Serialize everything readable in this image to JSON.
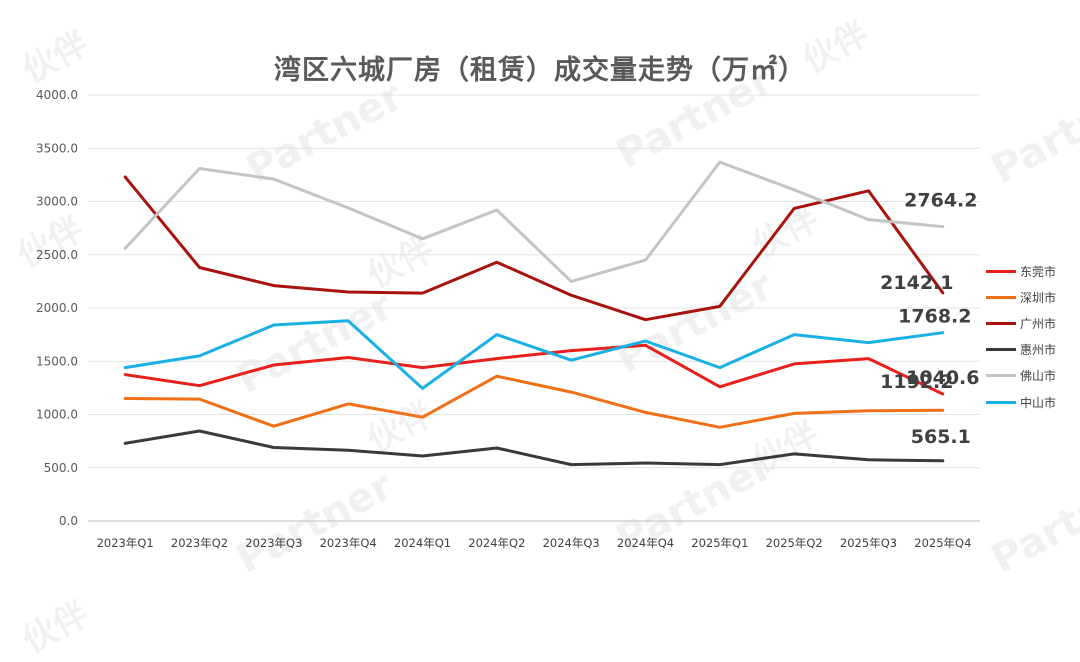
{
  "watermark": {
    "cn": "伙伴",
    "en": "Partner"
  },
  "chart_data": {
    "type": "line",
    "title": "湾区六城厂房（租赁）成交量走势（万㎡）",
    "categories": [
      "2023年Q1",
      "2023年Q2",
      "2023年Q3",
      "2023年Q4",
      "2024年Q1",
      "2024年Q2",
      "2024年Q3",
      "2024年Q4",
      "2025年Q1",
      "2025年Q2",
      "2025年Q3",
      "2025年Q4"
    ],
    "ylim": [
      0,
      4000
    ],
    "yticks": [
      "0.0",
      "500.0",
      "1000.0",
      "1500.0",
      "2000.0",
      "2500.0",
      "3000.0",
      "3500.0",
      "4000.0"
    ],
    "grid": true,
    "legend_position": "right",
    "series": [
      {
        "name": "东莞市",
        "color": "#e8201c",
        "values": [
          1375,
          1270,
          1465,
          1535,
          1440,
          1525,
          1600,
          1650,
          1260,
          1475,
          1525,
          1192.2
        ],
        "end_label": "1192.2"
      },
      {
        "name": "深圳市",
        "color": "#f07018",
        "values": [
          1150,
          1145,
          890,
          1100,
          975,
          1360,
          1210,
          1020,
          880,
          1010,
          1035,
          1040.6
        ],
        "end_label": "1040.6"
      },
      {
        "name": "广州市",
        "color": "#a8130e",
        "values": [
          3230,
          2380,
          2210,
          2150,
          2140,
          2430,
          2120,
          1890,
          2015,
          2935,
          3100,
          2142.1
        ],
        "end_label": "2142.1"
      },
      {
        "name": "惠州市",
        "color": "#3a3a3a",
        "values": [
          730,
          845,
          690,
          665,
          610,
          685,
          530,
          545,
          530,
          630,
          575,
          565.1
        ],
        "end_label": "565.1"
      },
      {
        "name": "佛山市",
        "color": "#c4c4c4",
        "values": [
          2560,
          3310,
          3210,
          2940,
          2650,
          2920,
          2250,
          2450,
          3370,
          3110,
          2830,
          2764.2
        ],
        "end_label": "2764.2"
      },
      {
        "name": "中山市",
        "color": "#19b0e3",
        "values": [
          1440,
          1550,
          1840,
          1880,
          1245,
          1750,
          1510,
          1690,
          1440,
          1750,
          1675,
          1768.2
        ],
        "end_label": "1768.2"
      }
    ]
  }
}
